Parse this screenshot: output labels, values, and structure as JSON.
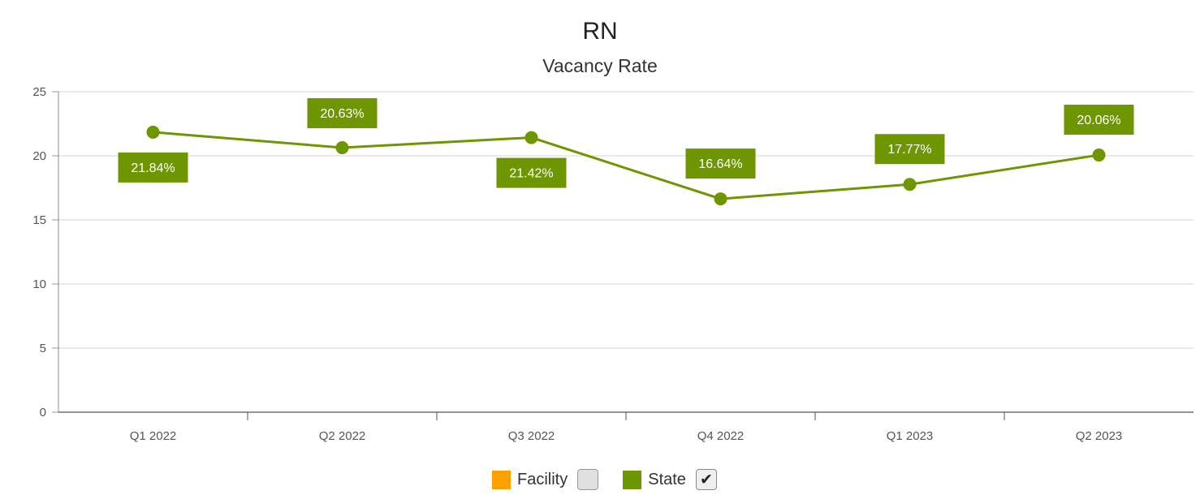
{
  "chart_data": {
    "type": "line",
    "title": "RN",
    "subtitle": "Vacancy Rate",
    "categories": [
      "Q1 2022",
      "Q2 2022",
      "Q3 2022",
      "Q4 2022",
      "Q1 2023",
      "Q2 2023"
    ],
    "ylim": [
      0,
      25
    ],
    "yticks": [
      0,
      5,
      10,
      15,
      20,
      25
    ],
    "grid": true,
    "series": [
      {
        "name": "State",
        "color": "#6e9600",
        "values": [
          21.84,
          20.63,
          21.42,
          16.64,
          17.77,
          20.06
        ],
        "labels": [
          "21.84%",
          "20.63%",
          "21.42%",
          "16.64%",
          "17.77%",
          "20.06%"
        ]
      }
    ],
    "legend": {
      "placement": "bottom-center",
      "items": [
        {
          "label": "Facility",
          "color": "#ff9f00",
          "checked": false
        },
        {
          "label": "State",
          "color": "#6e9600",
          "checked": true
        }
      ]
    }
  }
}
